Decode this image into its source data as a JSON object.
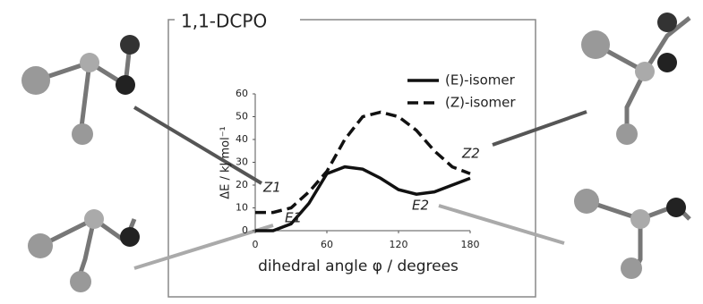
{
  "chart_data": {
    "type": "line",
    "title": "1,1-DCPO",
    "xlabel": "dihedral angle φ / degrees",
    "ylabel": "ΔE / kJ mol⁻¹",
    "x": [
      0,
      15,
      30,
      45,
      60,
      75,
      90,
      105,
      120,
      135,
      150,
      165,
      180
    ],
    "series": [
      {
        "name": "(E)-isomer",
        "color": "#111111",
        "dash": false,
        "values": [
          0,
          0,
          3,
          12,
          25,
          28,
          27,
          23,
          18,
          16,
          17,
          20,
          23
        ]
      },
      {
        "name": "(Z)-isomer",
        "color": "#111111",
        "dash": true,
        "values": [
          8,
          8,
          10,
          17,
          26,
          40,
          50,
          52,
          50,
          44,
          35,
          28,
          25
        ]
      }
    ],
    "xlim": [
      0,
      180
    ],
    "xticks": [
      0,
      60,
      120,
      180
    ],
    "ylim": [
      0,
      60
    ],
    "yticks": [
      0,
      10,
      20,
      30,
      40,
      50,
      60
    ],
    "annotations": [
      "Z1",
      "E1",
      "E2",
      "Z2"
    ],
    "legend": "upper right",
    "grid": false
  }
}
